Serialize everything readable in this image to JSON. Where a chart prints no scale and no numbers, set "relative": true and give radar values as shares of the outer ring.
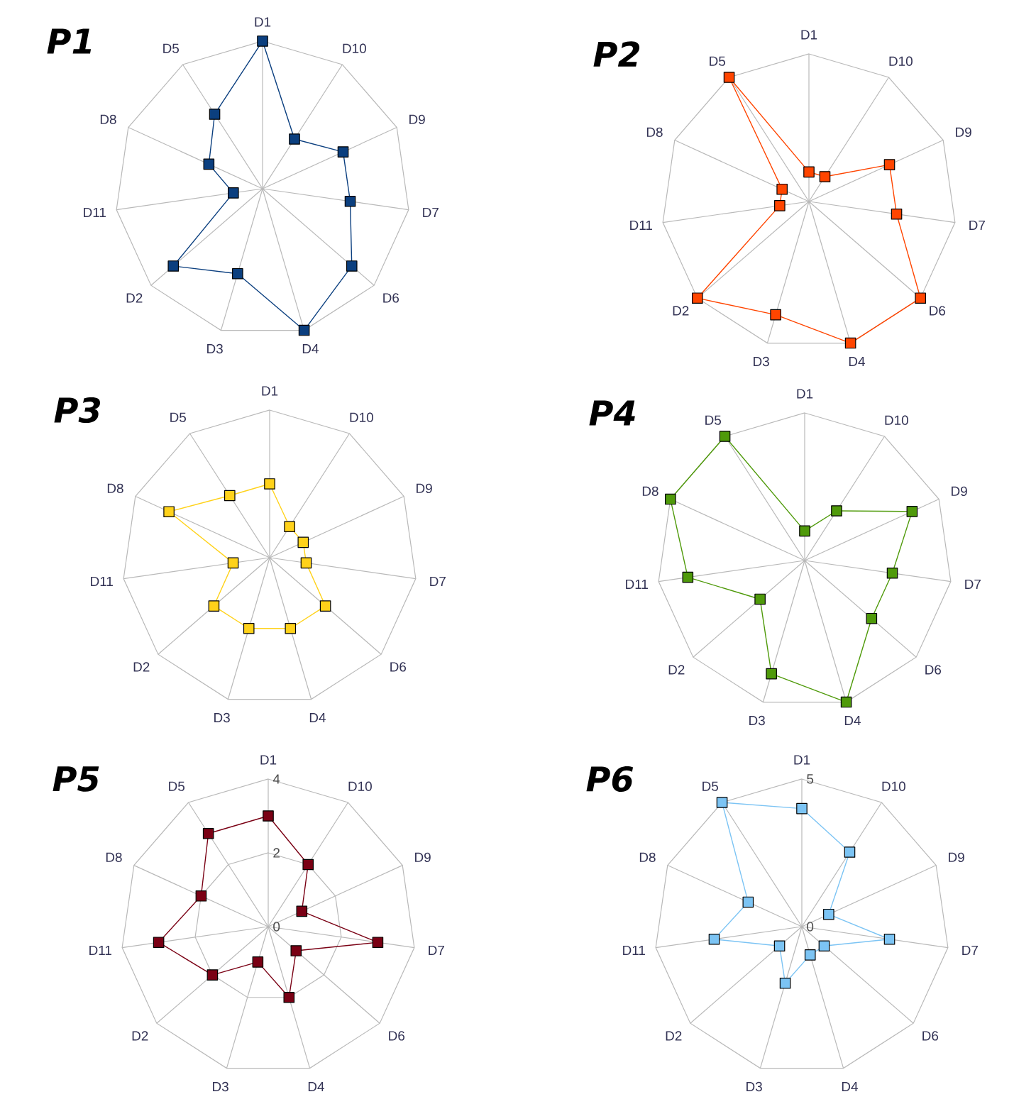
{
  "chart_data": [
    {
      "type": "radar",
      "title": "P1",
      "categories": [
        "D1",
        "D10",
        "D9",
        "D7",
        "D6",
        "D4",
        "D3",
        "D2",
        "D11",
        "D8",
        "D5"
      ],
      "relative": true,
      "grid": true,
      "marker": "square",
      "series": [
        {
          "color": "#0b3f7f",
          "values": [
            1,
            0.4,
            0.6,
            0.6,
            0.8,
            1,
            0.6,
            0.8,
            0.2,
            0.4,
            0.6
          ]
        }
      ]
    },
    {
      "type": "radar",
      "title": "P2",
      "categories": [
        "D1",
        "D10",
        "D9",
        "D7",
        "D6",
        "D4",
        "D3",
        "D2",
        "D11",
        "D8",
        "D5"
      ],
      "relative": true,
      "grid": true,
      "marker": "square",
      "series": [
        {
          "color": "#ff4500",
          "values": [
            0.2,
            0.2,
            0.6,
            0.6,
            1,
            1,
            0.8,
            1,
            0.2,
            0.2,
            1
          ]
        }
      ]
    },
    {
      "type": "radar",
      "title": "P3",
      "categories": [
        "D1",
        "D10",
        "D9",
        "D7",
        "D6",
        "D4",
        "D3",
        "D2",
        "D11",
        "D8",
        "D5"
      ],
      "relative": true,
      "grid": true,
      "marker": "square",
      "series": [
        {
          "color": "#ffd21a",
          "values": [
            0.5,
            0.25,
            0.25,
            0.25,
            0.5,
            0.5,
            0.5,
            0.5,
            0.25,
            0.75,
            0.5
          ]
        }
      ]
    },
    {
      "type": "radar",
      "title": "P4",
      "categories": [
        "D1",
        "D10",
        "D9",
        "D7",
        "D6",
        "D4",
        "D3",
        "D2",
        "D11",
        "D8",
        "D5"
      ],
      "relative": true,
      "grid": true,
      "marker": "square",
      "series": [
        {
          "color": "#4f9a0a",
          "values": [
            0.2,
            0.4,
            0.8,
            0.6,
            0.6,
            1,
            0.8,
            0.4,
            0.8,
            1,
            1
          ]
        }
      ]
    },
    {
      "type": "radar",
      "title": "P5",
      "categories": [
        "D1",
        "D10",
        "D9",
        "D7",
        "D6",
        "D4",
        "D3",
        "D2",
        "D11",
        "D8",
        "D5"
      ],
      "ylim": [
        0,
        4
      ],
      "yticks": [
        0,
        2,
        4
      ],
      "grid": true,
      "marker": "square",
      "series": [
        {
          "color": "#7a0014",
          "values": [
            3,
            2,
            1,
            3,
            1,
            2,
            1,
            2,
            3,
            2,
            3
          ]
        }
      ]
    },
    {
      "type": "radar",
      "title": "P6",
      "categories": [
        "D1",
        "D10",
        "D9",
        "D7",
        "D6",
        "D4",
        "D3",
        "D2",
        "D11",
        "D8",
        "D5"
      ],
      "ylim": [
        0,
        5
      ],
      "yticks": [
        0,
        5
      ],
      "grid": true,
      "marker": "square",
      "series": [
        {
          "color": "#7cc4f4",
          "values": [
            4,
            3,
            1,
            3,
            1,
            1,
            2,
            1,
            3,
            2,
            5
          ]
        }
      ]
    }
  ]
}
